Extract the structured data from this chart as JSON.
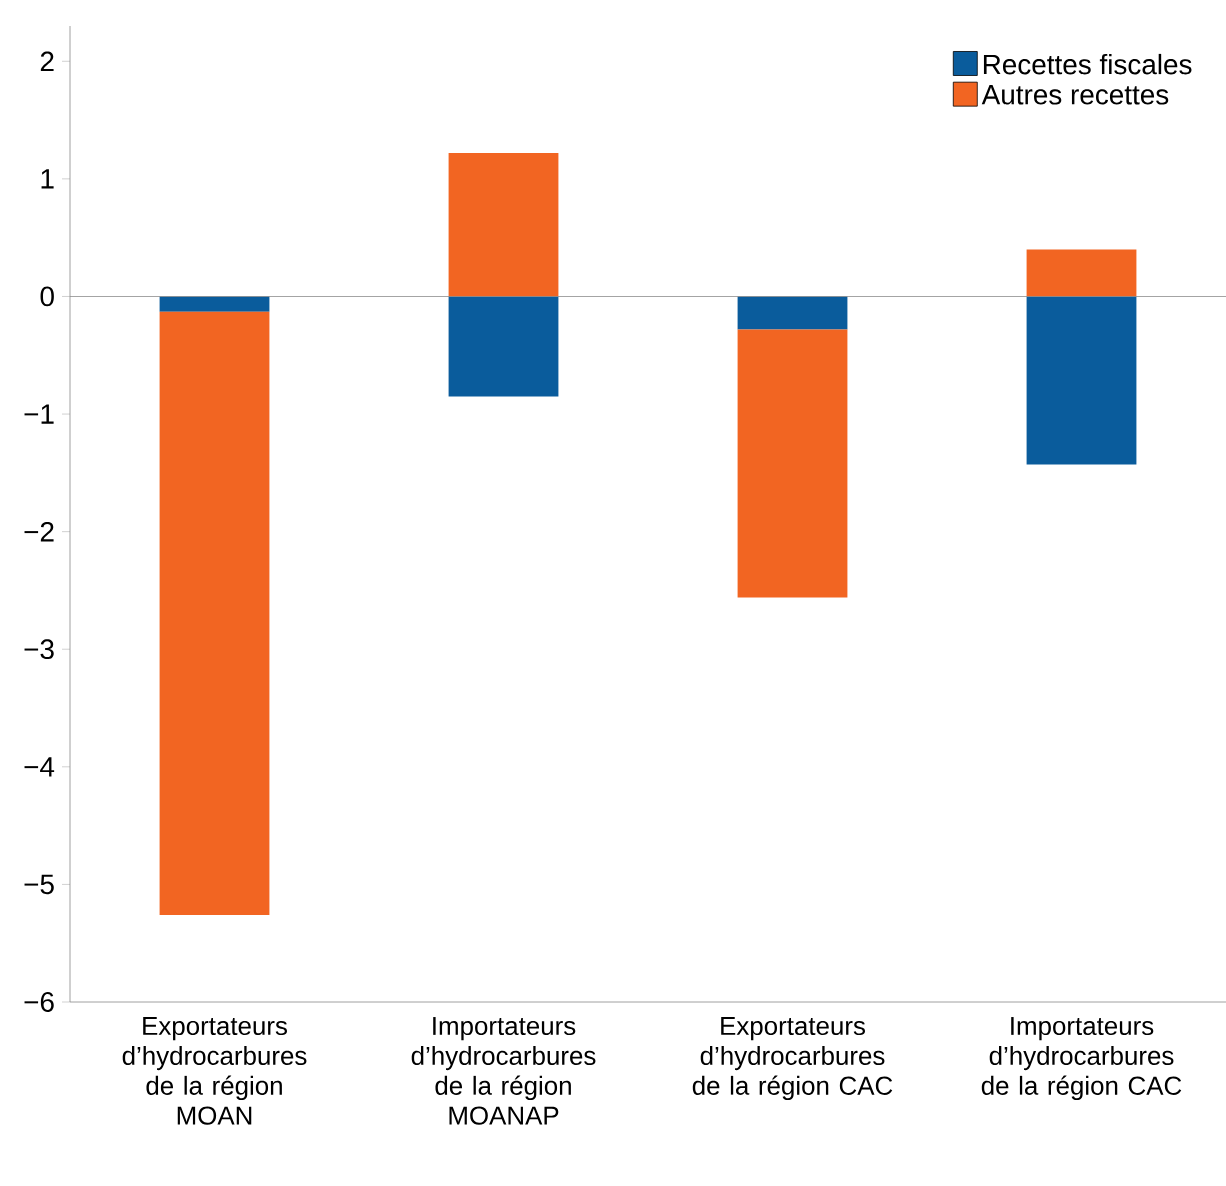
{
  "chart_data": {
    "type": "bar",
    "stacked": true,
    "categories": [
      "Exportateurs d’hydrocarbures de la région MOAN",
      "Importateurs d’hydrocarbures de la région MOANAP",
      "Exportateurs d’hydrocarbures de la région CAC",
      "Importateurs d’hydrocarbures de la région CAC"
    ],
    "series": [
      {
        "name": "Recettes fiscales",
        "color": "#0a5c9c",
        "values": [
          -0.13,
          -0.85,
          -0.28,
          -1.43
        ]
      },
      {
        "name": "Autres recettes",
        "color": "#f26522",
        "values": [
          -5.13,
          1.22,
          -2.28,
          0.4
        ]
      }
    ],
    "ylim": [
      -6,
      2.3
    ],
    "yticks": [
      {
        "value": -6,
        "label": "−6"
      },
      {
        "value": -5,
        "label": "−5"
      },
      {
        "value": -4,
        "label": "−4"
      },
      {
        "value": -3,
        "label": "−3"
      },
      {
        "value": -2,
        "label": "−2"
      },
      {
        "value": -1,
        "label": "−1"
      },
      0,
      1,
      2
    ],
    "legend": "top right"
  }
}
